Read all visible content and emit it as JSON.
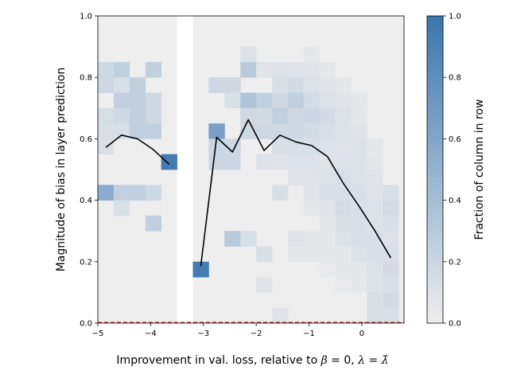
{
  "chart_data": {
    "type": "heatmap",
    "title": "",
    "xlabel_parts": [
      "Improvement in val. loss, relative to ",
      "β",
      " = 0, ",
      "λ",
      " = ",
      "λ̂"
    ],
    "ylabel": "Magnitude of bias in layer prediction",
    "colorbar_label": "Fraction of column in row",
    "xlim": [
      -5,
      0.8
    ],
    "ylim": [
      0,
      1
    ],
    "x_ticks": [
      -5,
      -4,
      -3,
      -2,
      -1,
      0
    ],
    "x_tick_labels": [
      "−5",
      "−4",
      "−3",
      "−2",
      "−1",
      "0"
    ],
    "y_ticks": [
      0.0,
      0.2,
      0.4,
      0.6,
      0.8,
      1.0
    ],
    "y_tick_labels": [
      "0.0",
      "0.2",
      "0.4",
      "0.6",
      "0.8",
      "1.0"
    ],
    "colorbar_ticks": [
      0.0,
      0.2,
      0.4,
      0.6,
      0.8,
      1.0
    ],
    "colorbar_tick_labels": [
      "0.0",
      "0.2",
      "0.4",
      "0.6",
      "0.8",
      "1.0"
    ],
    "colormap": {
      "low": "#eeeeee",
      "high": "#3a76b0"
    },
    "grid": false,
    "bins": {
      "x_edges": [
        -5.0,
        -4.7,
        -4.4,
        -4.1,
        -3.8,
        -3.5,
        -3.2,
        -2.9,
        -2.6,
        -2.3,
        -2.0,
        -1.7,
        -1.4,
        -1.1,
        -0.8,
        -0.5,
        -0.2,
        0.1,
        0.4,
        0.7
      ],
      "y_bin_size": 0.05,
      "empty_columns": [
        -3.5
      ]
    },
    "cells": [
      [
        -4.85,
        0.825,
        0.18
      ],
      [
        -4.85,
        0.775,
        0.18
      ],
      [
        -4.85,
        0.675,
        0.14
      ],
      [
        -4.85,
        0.625,
        0.12
      ],
      [
        -4.85,
        0.575,
        0.12
      ],
      [
        -4.85,
        0.425,
        0.55
      ],
      [
        -4.55,
        0.825,
        0.25
      ],
      [
        -4.55,
        0.775,
        0.12
      ],
      [
        -4.55,
        0.725,
        0.25
      ],
      [
        -4.55,
        0.675,
        0.18
      ],
      [
        -4.55,
        0.625,
        0.12
      ],
      [
        -4.55,
        0.425,
        0.25
      ],
      [
        -4.55,
        0.375,
        0.12
      ],
      [
        -4.25,
        0.775,
        0.25
      ],
      [
        -4.25,
        0.725,
        0.25
      ],
      [
        -4.25,
        0.675,
        0.25
      ],
      [
        -4.25,
        0.625,
        0.25
      ],
      [
        -4.25,
        0.425,
        0.25
      ],
      [
        -3.95,
        0.825,
        0.25
      ],
      [
        -3.95,
        0.725,
        0.18
      ],
      [
        -3.95,
        0.675,
        0.18
      ],
      [
        -3.95,
        0.625,
        0.25
      ],
      [
        -3.95,
        0.425,
        0.18
      ],
      [
        -3.95,
        0.325,
        0.25
      ],
      [
        -3.65,
        0.525,
        0.95
      ],
      [
        -3.05,
        0.175,
        0.95
      ],
      [
        -2.75,
        0.775,
        0.18
      ],
      [
        -2.75,
        0.625,
        0.65
      ],
      [
        -2.75,
        0.575,
        0.2
      ],
      [
        -2.75,
        0.525,
        0.2
      ],
      [
        -2.45,
        0.775,
        0.18
      ],
      [
        -2.45,
        0.725,
        0.12
      ],
      [
        -2.45,
        0.575,
        0.18
      ],
      [
        -2.45,
        0.525,
        0.2
      ],
      [
        -2.45,
        0.275,
        0.3
      ],
      [
        -2.15,
        0.875,
        0.1
      ],
      [
        -2.15,
        0.825,
        0.3
      ],
      [
        -2.15,
        0.725,
        0.35
      ],
      [
        -2.15,
        0.675,
        0.18
      ],
      [
        -2.15,
        0.625,
        0.18
      ],
      [
        -2.15,
        0.275,
        0.12
      ],
      [
        -1.85,
        0.825,
        0.08
      ],
      [
        -1.85,
        0.725,
        0.25
      ],
      [
        -1.85,
        0.675,
        0.15
      ],
      [
        -1.85,
        0.625,
        0.18
      ],
      [
        -1.85,
        0.525,
        0.1
      ],
      [
        -1.85,
        0.225,
        0.12
      ],
      [
        -1.85,
        0.125,
        0.08
      ],
      [
        -1.55,
        0.825,
        0.1
      ],
      [
        -1.55,
        0.775,
        0.12
      ],
      [
        -1.55,
        0.725,
        0.18
      ],
      [
        -1.55,
        0.675,
        0.25
      ],
      [
        -1.55,
        0.625,
        0.18
      ],
      [
        -1.55,
        0.575,
        0.12
      ],
      [
        -1.55,
        0.525,
        0.08
      ],
      [
        -1.55,
        0.425,
        0.12
      ],
      [
        -1.55,
        0.025,
        0.08
      ],
      [
        -1.25,
        0.825,
        0.08
      ],
      [
        -1.25,
        0.775,
        0.15
      ],
      [
        -1.25,
        0.725,
        0.25
      ],
      [
        -1.25,
        0.675,
        0.18
      ],
      [
        -1.25,
        0.625,
        0.18
      ],
      [
        -1.25,
        0.575,
        0.12
      ],
      [
        -1.25,
        0.525,
        0.1
      ],
      [
        -1.25,
        0.475,
        0.08
      ],
      [
        -1.25,
        0.275,
        0.08
      ],
      [
        -1.25,
        0.225,
        0.05
      ],
      [
        -0.95,
        0.875,
        0.05
      ],
      [
        -0.95,
        0.825,
        0.08
      ],
      [
        -0.95,
        0.775,
        0.1
      ],
      [
        -0.95,
        0.725,
        0.15
      ],
      [
        -0.95,
        0.675,
        0.2
      ],
      [
        -0.95,
        0.625,
        0.15
      ],
      [
        -0.95,
        0.575,
        0.12
      ],
      [
        -0.95,
        0.525,
        0.1
      ],
      [
        -0.95,
        0.475,
        0.08
      ],
      [
        -0.95,
        0.425,
        0.08
      ],
      [
        -0.95,
        0.375,
        0.05
      ],
      [
        -0.95,
        0.275,
        0.05
      ],
      [
        -0.95,
        0.225,
        0.05
      ],
      [
        -0.65,
        0.825,
        0.05
      ],
      [
        -0.65,
        0.775,
        0.08
      ],
      [
        -0.65,
        0.725,
        0.1
      ],
      [
        -0.65,
        0.675,
        0.15
      ],
      [
        -0.65,
        0.625,
        0.12
      ],
      [
        -0.65,
        0.575,
        0.1
      ],
      [
        -0.65,
        0.525,
        0.08
      ],
      [
        -0.65,
        0.475,
        0.1
      ],
      [
        -0.65,
        0.425,
        0.12
      ],
      [
        -0.65,
        0.375,
        0.08
      ],
      [
        -0.65,
        0.325,
        0.06
      ],
      [
        -0.65,
        0.275,
        0.05
      ],
      [
        -0.65,
        0.225,
        0.05
      ],
      [
        -0.65,
        0.175,
        0.04
      ],
      [
        -0.35,
        0.775,
        0.05
      ],
      [
        -0.35,
        0.725,
        0.08
      ],
      [
        -0.35,
        0.675,
        0.1
      ],
      [
        -0.35,
        0.625,
        0.1
      ],
      [
        -0.35,
        0.575,
        0.08
      ],
      [
        -0.35,
        0.525,
        0.1
      ],
      [
        -0.35,
        0.475,
        0.12
      ],
      [
        -0.35,
        0.425,
        0.12
      ],
      [
        -0.35,
        0.375,
        0.15
      ],
      [
        -0.35,
        0.325,
        0.12
      ],
      [
        -0.35,
        0.275,
        0.1
      ],
      [
        -0.35,
        0.225,
        0.05
      ],
      [
        -0.35,
        0.175,
        0.05
      ],
      [
        -0.35,
        0.125,
        0.04
      ],
      [
        -0.05,
        0.725,
        0.05
      ],
      [
        -0.05,
        0.675,
        0.06
      ],
      [
        -0.05,
        0.625,
        0.08
      ],
      [
        -0.05,
        0.575,
        0.1
      ],
      [
        -0.05,
        0.525,
        0.1
      ],
      [
        -0.05,
        0.475,
        0.1
      ],
      [
        -0.05,
        0.425,
        0.12
      ],
      [
        -0.05,
        0.375,
        0.12
      ],
      [
        -0.05,
        0.325,
        0.12
      ],
      [
        -0.05,
        0.275,
        0.12
      ],
      [
        -0.05,
        0.225,
        0.1
      ],
      [
        -0.05,
        0.175,
        0.06
      ],
      [
        -0.05,
        0.125,
        0.05
      ],
      [
        0.25,
        0.575,
        0.05
      ],
      [
        0.25,
        0.525,
        0.06
      ],
      [
        0.25,
        0.475,
        0.08
      ],
      [
        0.25,
        0.425,
        0.08
      ],
      [
        0.25,
        0.375,
        0.1
      ],
      [
        0.25,
        0.325,
        0.1
      ],
      [
        0.25,
        0.275,
        0.12
      ],
      [
        0.25,
        0.225,
        0.12
      ],
      [
        0.25,
        0.175,
        0.1
      ],
      [
        0.25,
        0.125,
        0.1
      ],
      [
        0.25,
        0.075,
        0.12
      ],
      [
        0.25,
        0.025,
        0.12
      ],
      [
        0.55,
        0.425,
        0.12
      ],
      [
        0.55,
        0.375,
        0.15
      ],
      [
        0.55,
        0.325,
        0.12
      ],
      [
        0.55,
        0.275,
        0.1
      ],
      [
        0.55,
        0.225,
        0.12
      ],
      [
        0.55,
        0.175,
        0.15
      ],
      [
        0.55,
        0.125,
        0.12
      ],
      [
        0.55,
        0.075,
        0.15
      ],
      [
        0.55,
        0.025,
        0.12
      ]
    ],
    "series": [
      {
        "color": "#000000",
        "x": [
          -4.85,
          -4.55,
          -4.25,
          -3.95,
          -3.65
        ],
        "y": [
          0.572,
          0.612,
          0.6,
          0.565,
          0.517
        ]
      },
      {
        "color": "#000000",
        "x": [
          -3.05,
          -2.75,
          -2.45,
          -2.15,
          -1.85,
          -1.55,
          -1.25,
          -0.95,
          -0.65,
          -0.35,
          -0.05,
          0.25,
          0.55
        ],
        "y": [
          0.185,
          0.605,
          0.557,
          0.662,
          0.562,
          0.612,
          0.59,
          0.578,
          0.542,
          0.455,
          0.38,
          0.3,
          0.212
        ]
      }
    ],
    "reference_line": {
      "y": 0,
      "color": "#d62728",
      "style": "dashed"
    }
  }
}
